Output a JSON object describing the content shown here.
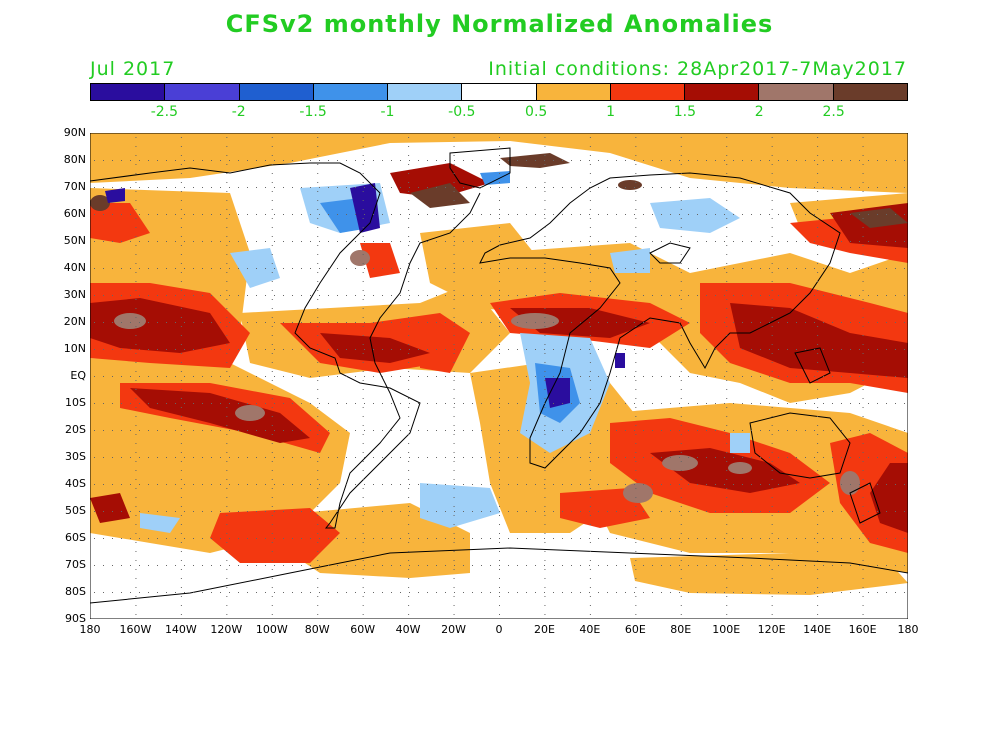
{
  "title": "CFSv2 monthly Normalized Anomalies",
  "target_month": "Jul 2017",
  "initial_conditions": "Initial conditions: 28Apr2017-7May2017",
  "colorbar": {
    "colors": [
      "#2a0d9e",
      "#4a3fd6",
      "#1f5fd0",
      "#3f92ea",
      "#9fd0f8",
      "#ffffff",
      "#f8b43c",
      "#f33810",
      "#a50d04",
      "#a0766a",
      "#6a3c2a"
    ],
    "labels": [
      "-2.5",
      "-2",
      "-1.5",
      "-1",
      "-0.5",
      "0.5",
      "1",
      "1.5",
      "2",
      "2.5"
    ]
  },
  "map": {
    "lat_labels": [
      "90N",
      "80N",
      "70N",
      "60N",
      "50N",
      "40N",
      "30N",
      "20N",
      "10N",
      "EQ",
      "10S",
      "20S",
      "30S",
      "40S",
      "50S",
      "60S",
      "70S",
      "80S",
      "90S"
    ],
    "lon_labels": [
      "180",
      "160W",
      "140W",
      "120W",
      "100W",
      "80W",
      "60W",
      "40W",
      "20W",
      "0",
      "20E",
      "40E",
      "60E",
      "80E",
      "100E",
      "120E",
      "140E",
      "160E",
      "180"
    ]
  }
}
